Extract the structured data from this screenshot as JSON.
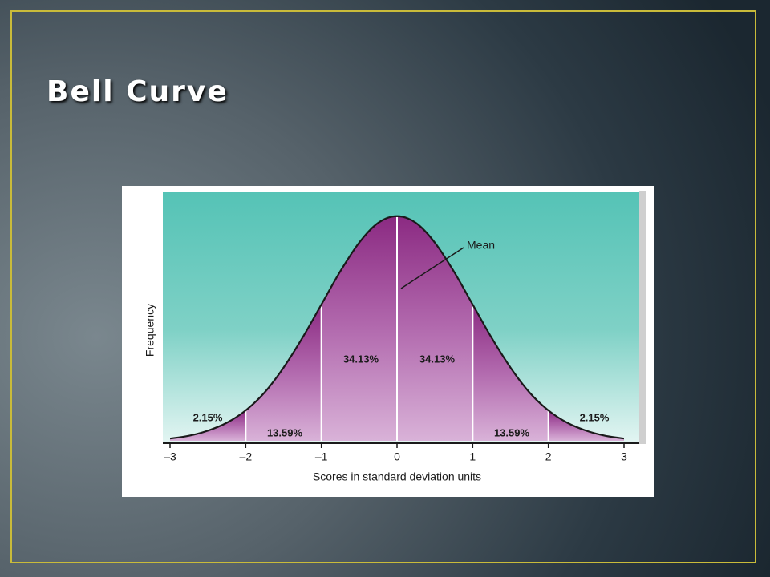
{
  "slide": {
    "title": "Bell Curve"
  },
  "chart_data": {
    "type": "area",
    "x_label": "Scores in standard deviation units",
    "y_label": "Frequency",
    "annotation": "Mean",
    "x": [
      -3,
      -2.75,
      -2.5,
      -2.25,
      -2,
      -1.75,
      -1.5,
      -1.25,
      -1,
      -0.75,
      -0.5,
      -0.25,
      0,
      0.25,
      0.5,
      0.75,
      1,
      1.25,
      1.5,
      1.75,
      2,
      2.25,
      2.5,
      2.75,
      3
    ],
    "values": [
      0.004,
      0.009,
      0.018,
      0.032,
      0.054,
      0.086,
      0.13,
      0.183,
      0.242,
      0.301,
      0.352,
      0.387,
      0.399,
      0.387,
      0.352,
      0.301,
      0.242,
      0.183,
      0.13,
      0.086,
      0.054,
      0.032,
      0.018,
      0.009,
      0.004
    ],
    "xlim": [
      -3,
      3
    ],
    "ylim": [
      0,
      0.42
    ],
    "xticks": [
      {
        "value": -3,
        "label": "–3"
      },
      {
        "value": -2,
        "label": "–2"
      },
      {
        "value": -1,
        "label": "–1"
      },
      0,
      1,
      2,
      3
    ],
    "segments": {
      "values": [
        2.15,
        13.59,
        34.13,
        34.13,
        13.59,
        2.15
      ],
      "value_labels": [
        "2.15%",
        "13.59%",
        "34.13%",
        "34.13%",
        "13.59%",
        "2.15%"
      ]
    },
    "color": "#8b2a82"
  }
}
